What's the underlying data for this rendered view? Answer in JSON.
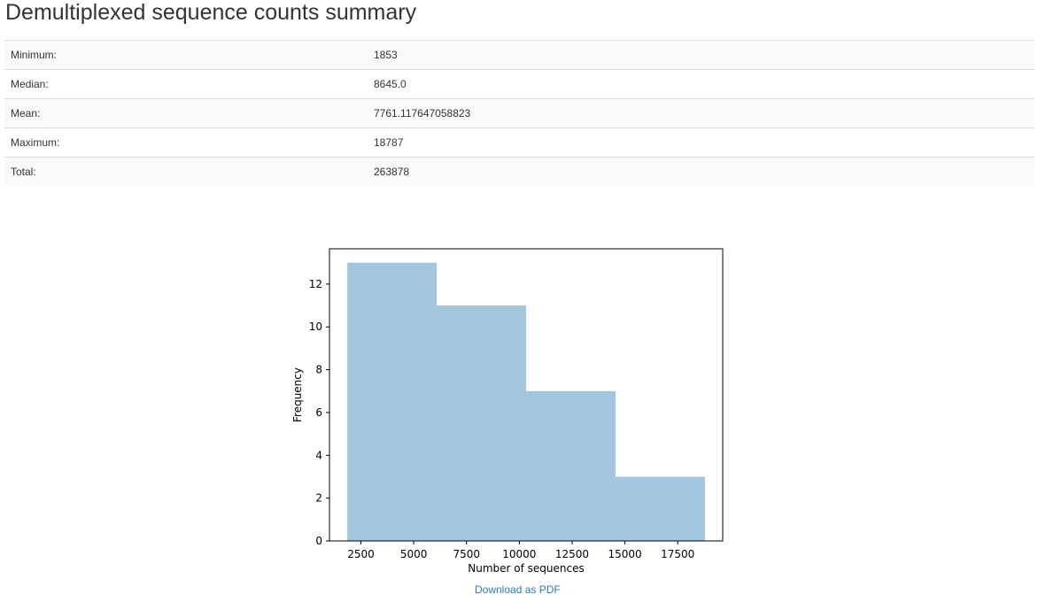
{
  "title": "Demultiplexed sequence counts summary",
  "stats": [
    {
      "label": "Minimum:",
      "value": "1853"
    },
    {
      "label": "Median:",
      "value": "8645.0"
    },
    {
      "label": "Mean:",
      "value": "7761.117647058823"
    },
    {
      "label": "Maximum:",
      "value": "18787"
    },
    {
      "label": "Total:",
      "value": "263878"
    }
  ],
  "download_label": "Download as PDF",
  "chart_data": {
    "type": "bar",
    "subtype": "histogram",
    "bins": [
      {
        "start": 1853,
        "end": 6086.5,
        "count": 13
      },
      {
        "start": 6086.5,
        "end": 10320,
        "count": 11
      },
      {
        "start": 10320,
        "end": 14553.5,
        "count": 7
      },
      {
        "start": 14553.5,
        "end": 18787,
        "count": 3
      }
    ],
    "xlabel": "Number of sequences",
    "ylabel": "Frequency",
    "xticks": [
      2500,
      5000,
      7500,
      10000,
      12500,
      15000,
      17500
    ],
    "yticks": [
      0,
      2,
      4,
      6,
      8,
      10,
      12
    ],
    "xlim": [
      1010,
      19630
    ],
    "ylim": [
      0,
      13.65
    ],
    "bar_color": "#a3c6de",
    "grid": false
  }
}
